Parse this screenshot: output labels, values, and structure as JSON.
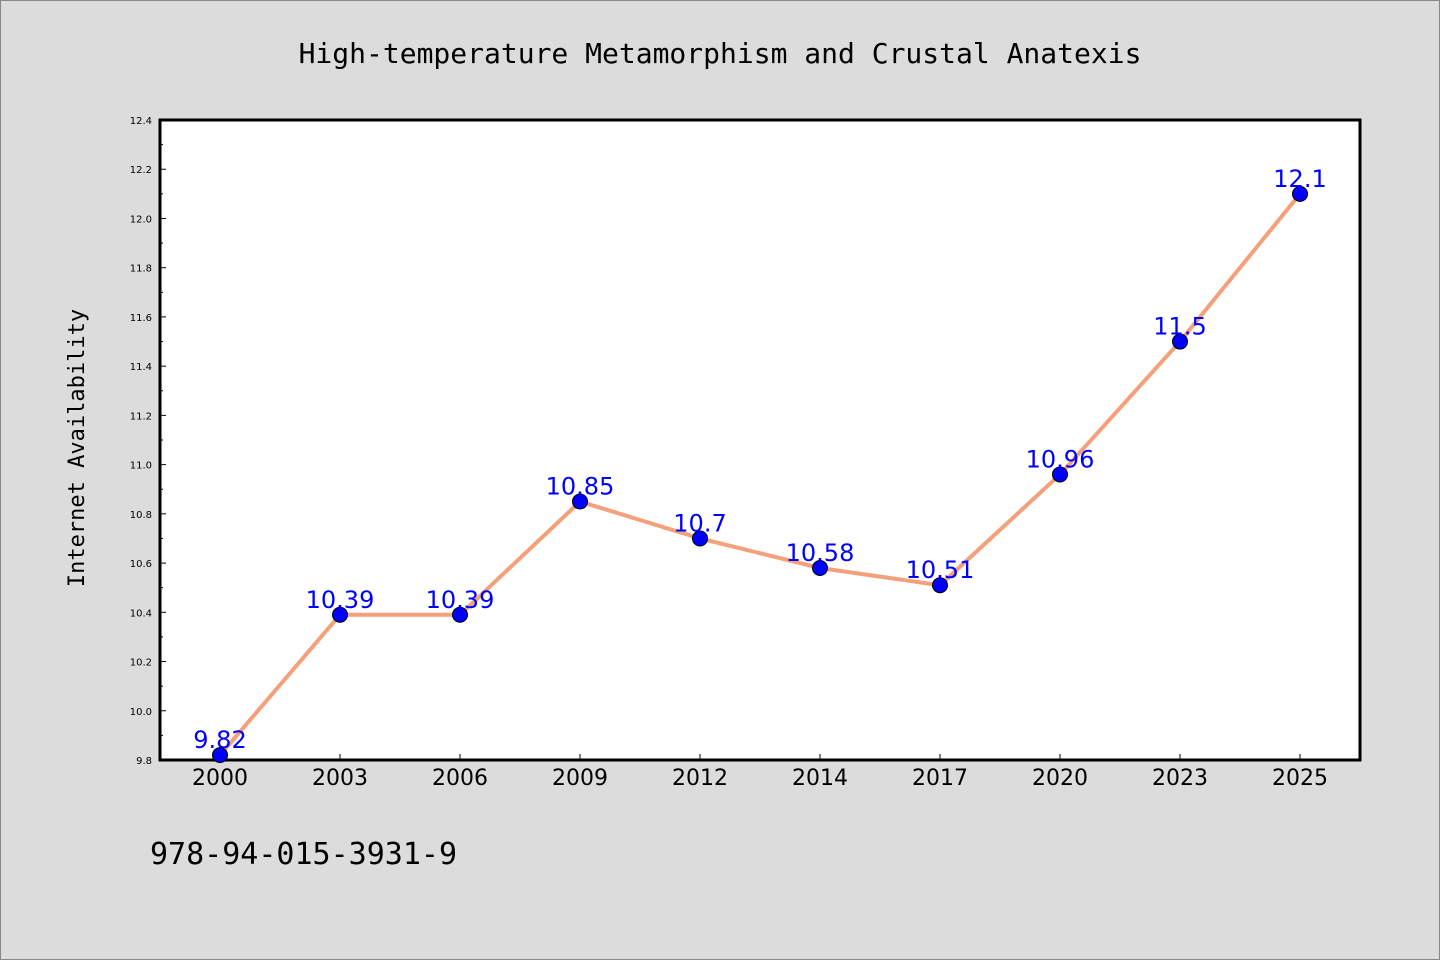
{
  "chart_data": {
    "type": "line",
    "title": "High-temperature Metamorphism and Crustal Anatexis",
    "xlabel": "",
    "ylabel": "Internet Availability",
    "categories": [
      "2000",
      "2003",
      "2006",
      "2009",
      "2012",
      "2014",
      "2017",
      "2020",
      "2023",
      "2025"
    ],
    "values": [
      9.82,
      10.39,
      10.39,
      10.85,
      10.7,
      10.58,
      10.51,
      10.96,
      11.5,
      12.1
    ],
    "data_labels": [
      "9.82",
      "10.39",
      "10.39",
      "10.85",
      "10.7",
      "10.58",
      "10.51",
      "10.96",
      "11.5",
      "12.1"
    ],
    "ylim": [
      9.8,
      12.4
    ],
    "yticks": [
      "9.8",
      "10.0",
      "10.2",
      "10.4",
      "10.6",
      "10.8",
      "11.0",
      "11.2",
      "11.4",
      "11.6",
      "11.8",
      "12.0",
      "12.2",
      "12.4"
    ],
    "grid": false,
    "legend": "none",
    "line_color": "#f4a07a",
    "marker_color": "#0000ff",
    "background_color": "#dcdcdc",
    "plot_background_color": "#ffffff"
  },
  "footnote": "978-94-015-3931-9"
}
